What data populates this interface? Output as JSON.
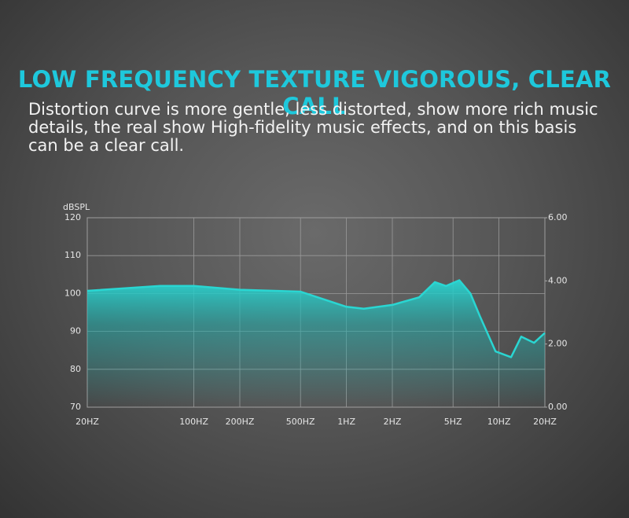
{
  "chart_data": {
    "type": "line",
    "title": "LOW FREQUENCY TEXTURE VIGOROUS, CLEAR CALL",
    "subtitle": "Distortion curve is more gentle, less distorted, show more rich music details, the real show High-fidelity music effects, and on this basis can be a clear call.",
    "y_label": "dBSPL",
    "x_scale": "log",
    "grid": true,
    "x": [
      20,
      60,
      100,
      200,
      500,
      1000,
      1300,
      2000,
      3000,
      3800,
      4500,
      5500,
      6500,
      7500,
      9500,
      12000,
      14000,
      17000,
      20000
    ],
    "series": [
      {
        "color": "#2ad6d2",
        "values": [
          100.7,
          102,
          102,
          101,
          100.5,
          96.5,
          96,
          97,
          99,
          103,
          102,
          103.5,
          100,
          94,
          84.7,
          83.2,
          88.6,
          87,
          89.6
        ]
      }
    ],
    "xlim": [
      20,
      20000
    ],
    "xticks": [
      {
        "value": 20,
        "label": "20HZ"
      },
      {
        "value": 100,
        "label": "100HZ"
      },
      {
        "value": 200,
        "label": "200HZ"
      },
      {
        "value": 500,
        "label": "500HZ"
      },
      {
        "value": 1000,
        "label": "1HZ"
      },
      {
        "value": 2000,
        "label": "2HZ"
      },
      {
        "value": 5000,
        "label": "5HZ"
      },
      {
        "value": 10000,
        "label": "10HZ"
      },
      {
        "value": 20000,
        "label": "20HZ"
      }
    ],
    "ylim": [
      70,
      120
    ],
    "yticks": [
      70,
      80,
      90,
      100,
      110,
      120
    ],
    "y2lim": [
      0,
      6
    ],
    "y2ticks": [
      {
        "value": 0,
        "label": "0.00"
      },
      {
        "value": 2,
        "label": "2.00"
      },
      {
        "value": 4,
        "label": "4.00"
      },
      {
        "value": 6,
        "label": "6.00"
      }
    ]
  }
}
